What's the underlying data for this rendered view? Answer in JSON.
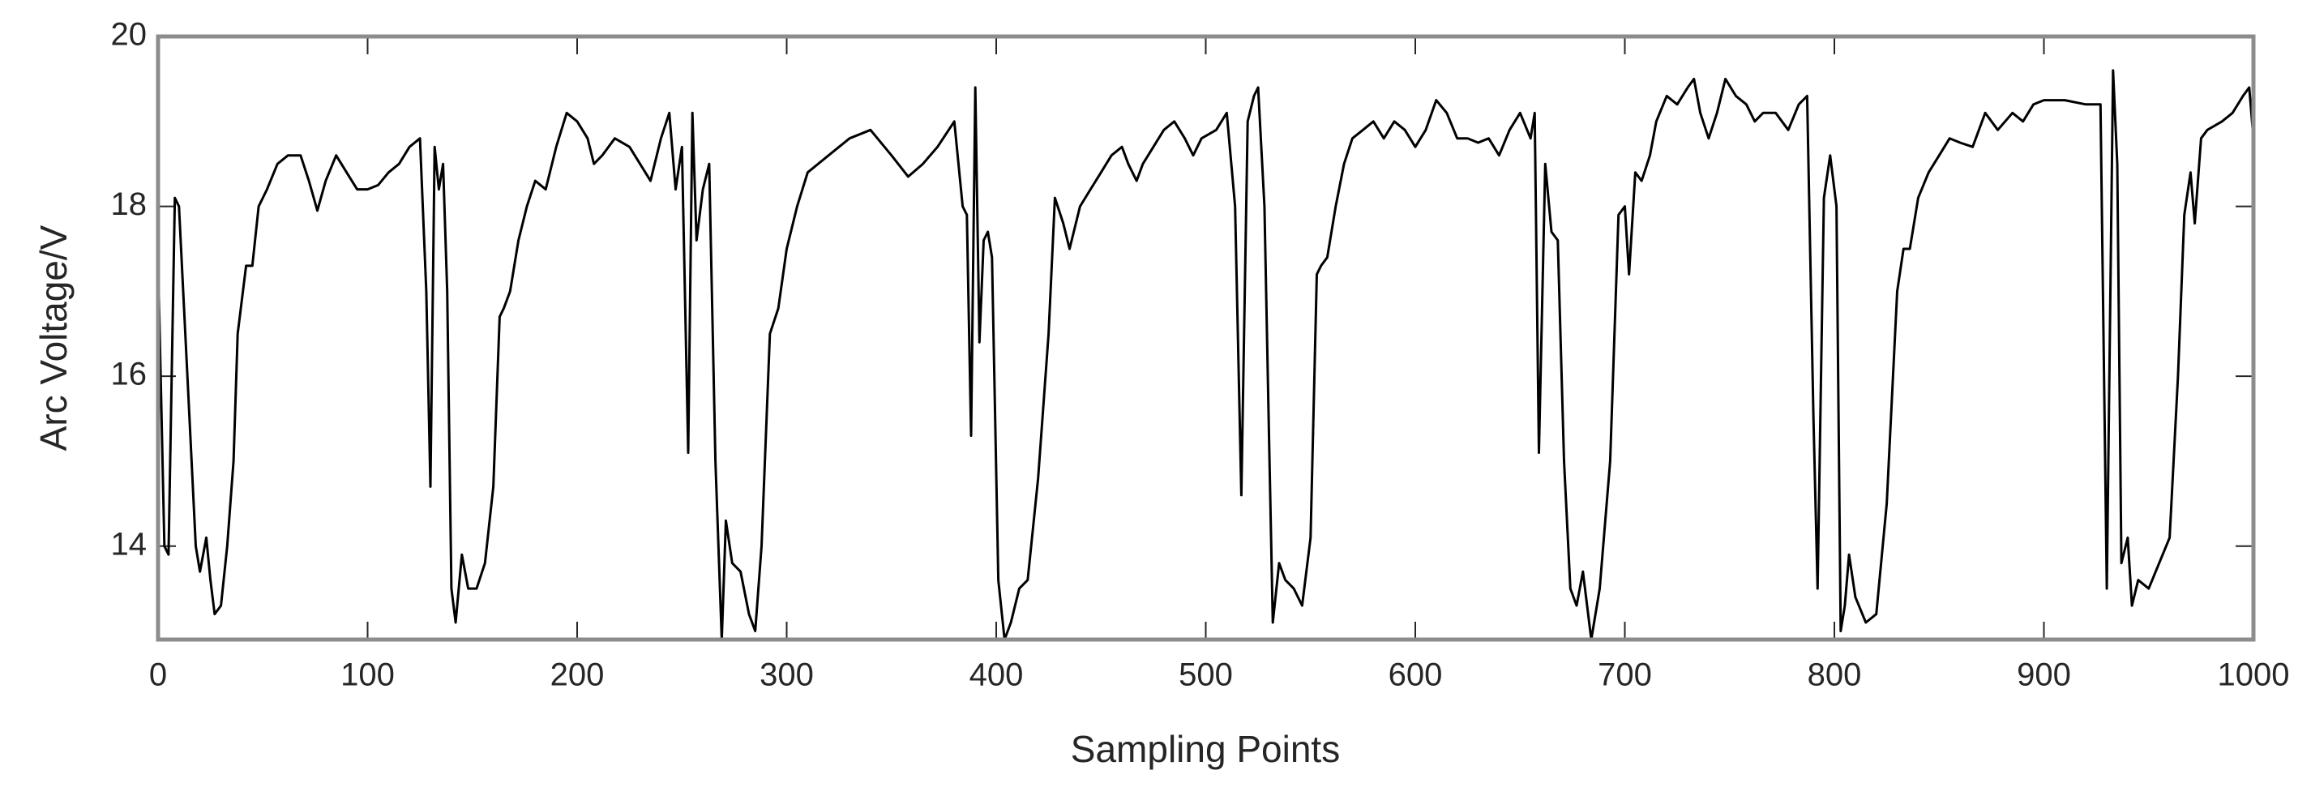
{
  "chart_data": {
    "type": "line",
    "xlabel": "Sampling Points",
    "ylabel": "Arc Voltage/V",
    "color": "#000000",
    "xlim": [
      0,
      1000
    ],
    "ylim": [
      12.9,
      20
    ],
    "xticks": [
      0,
      100,
      200,
      300,
      400,
      500,
      600,
      700,
      800,
      900,
      1000
    ],
    "yticks": [
      14,
      16,
      18,
      20
    ],
    "x": [
      0,
      3,
      5,
      8,
      10,
      12,
      15,
      18,
      20,
      23,
      25,
      27,
      30,
      33,
      36,
      38,
      42,
      45,
      48,
      52,
      57,
      62,
      68,
      72,
      76,
      80,
      85,
      90,
      95,
      100,
      105,
      110,
      115,
      120,
      125,
      128,
      130,
      132,
      134,
      136,
      138,
      140,
      142,
      145,
      148,
      152,
      156,
      160,
      163,
      165,
      168,
      172,
      176,
      180,
      185,
      190,
      195,
      200,
      205,
      208,
      212,
      218,
      225,
      230,
      235,
      240,
      244,
      247,
      250,
      253,
      255,
      257,
      260,
      263,
      266,
      269,
      271,
      274,
      278,
      282,
      285,
      288,
      292,
      296,
      300,
      305,
      310,
      320,
      330,
      340,
      350,
      358,
      365,
      372,
      380,
      384,
      386,
      388,
      390,
      392,
      394,
      396,
      398,
      401,
      404,
      407,
      411,
      415,
      420,
      425,
      428,
      432,
      435,
      440,
      445,
      450,
      455,
      460,
      463,
      467,
      470,
      475,
      480,
      485,
      490,
      494,
      498,
      505,
      510,
      514,
      517,
      520,
      523,
      525,
      528,
      530,
      532,
      535,
      538,
      542,
      546,
      550,
      553,
      555,
      558,
      562,
      566,
      570,
      575,
      580,
      585,
      590,
      595,
      600,
      605,
      610,
      615,
      620,
      625,
      630,
      635,
      640,
      645,
      650,
      655,
      657,
      659,
      662,
      665,
      668,
      671,
      674,
      677,
      680,
      684,
      688,
      693,
      697,
      700,
      702,
      705,
      708,
      712,
      715,
      720,
      725,
      730,
      733,
      736,
      740,
      744,
      748,
      753,
      758,
      762,
      766,
      772,
      778,
      783,
      787,
      790,
      792,
      795,
      798,
      801,
      803,
      805,
      807,
      810,
      815,
      820,
      825,
      830,
      833,
      836,
      840,
      845,
      850,
      855,
      860,
      866,
      872,
      878,
      885,
      890,
      895,
      900,
      910,
      920,
      927,
      930,
      933,
      935,
      937,
      940,
      942,
      945,
      950,
      955,
      960,
      964,
      967,
      970,
      972,
      975,
      978,
      985,
      990,
      995,
      998,
      1000
    ],
    "values": [
      17.4,
      14.0,
      13.9,
      18.1,
      18.0,
      17.0,
      15.5,
      14.0,
      13.7,
      14.1,
      13.6,
      13.2,
      13.3,
      14.0,
      15.0,
      16.5,
      17.3,
      17.3,
      18.0,
      18.2,
      18.5,
      18.6,
      18.6,
      18.3,
      17.95,
      18.3,
      18.6,
      18.4,
      18.2,
      18.2,
      18.25,
      18.4,
      18.5,
      18.7,
      18.8,
      17.0,
      14.7,
      18.7,
      18.2,
      18.5,
      17.0,
      13.5,
      13.1,
      13.9,
      13.5,
      13.5,
      13.8,
      14.7,
      16.7,
      16.8,
      17.0,
      17.6,
      18.0,
      18.3,
      18.2,
      18.7,
      19.1,
      19.0,
      18.8,
      18.5,
      18.6,
      18.8,
      18.7,
      18.5,
      18.3,
      18.8,
      19.1,
      18.2,
      18.7,
      15.1,
      19.1,
      17.6,
      18.2,
      18.5,
      15.0,
      12.9,
      14.3,
      13.8,
      13.7,
      13.2,
      13.0,
      14.0,
      16.5,
      16.8,
      17.5,
      18.0,
      18.4,
      18.6,
      18.8,
      18.9,
      18.6,
      18.35,
      18.5,
      18.7,
      19.0,
      18.0,
      17.9,
      15.3,
      19.4,
      16.4,
      17.6,
      17.7,
      17.4,
      13.6,
      12.9,
      13.1,
      13.5,
      13.6,
      14.8,
      16.5,
      18.1,
      17.8,
      17.5,
      18.0,
      18.2,
      18.4,
      18.6,
      18.7,
      18.5,
      18.3,
      18.5,
      18.7,
      18.9,
      19.0,
      18.8,
      18.6,
      18.8,
      18.9,
      19.1,
      18.0,
      14.6,
      19.0,
      19.3,
      19.4,
      18.0,
      15.5,
      13.1,
      13.8,
      13.6,
      13.5,
      13.3,
      14.1,
      17.2,
      17.3,
      17.4,
      18.0,
      18.5,
      18.8,
      18.9,
      19.0,
      18.8,
      19.0,
      18.9,
      18.7,
      18.9,
      19.25,
      19.1,
      18.8,
      18.8,
      18.75,
      18.8,
      18.6,
      18.9,
      19.1,
      18.8,
      19.1,
      15.1,
      18.5,
      17.7,
      17.6,
      15.0,
      13.5,
      13.3,
      13.7,
      12.9,
      13.5,
      15.0,
      17.9,
      18.0,
      17.2,
      18.4,
      18.3,
      18.6,
      19.0,
      19.3,
      19.2,
      19.4,
      19.5,
      19.1,
      18.8,
      19.1,
      19.5,
      19.3,
      19.2,
      19.0,
      19.1,
      19.1,
      18.9,
      19.2,
      19.3,
      15.5,
      13.5,
      18.1,
      18.6,
      18.0,
      13.0,
      13.3,
      13.9,
      13.4,
      13.1,
      13.2,
      14.5,
      17.0,
      17.5,
      17.5,
      18.1,
      18.4,
      18.6,
      18.8,
      18.75,
      18.7,
      19.1,
      18.9,
      19.1,
      19.0,
      19.2,
      19.25,
      19.25,
      19.2,
      19.2,
      13.5,
      19.6,
      18.5,
      13.8,
      14.1,
      13.3,
      13.6,
      13.5,
      13.8,
      14.1,
      16.0,
      17.9,
      18.4,
      17.8,
      18.8,
      18.9,
      19.0,
      19.1,
      19.3,
      19.4,
      18.8
    ]
  }
}
